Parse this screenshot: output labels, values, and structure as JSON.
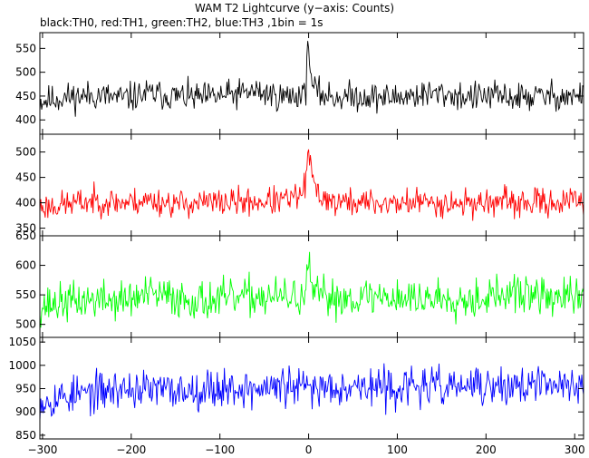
{
  "title": "WAM T2 Lightcurve (y−axis: Counts)",
  "subtitle": "black:TH0, red:TH1, green:TH2, blue:TH3 ,1bin = 1s",
  "chart_data": {
    "type": "line",
    "title": "WAM T2 Lightcurve (y−axis: Counts)",
    "subtitle": "black:TH0, red:TH1, green:TH2, blue:TH3 ,1bin = 1s",
    "xlabel": "",
    "ylabel": "",
    "xlim": [
      -303,
      310
    ],
    "x_ticks": [
      -300,
      -200,
      -100,
      0,
      100,
      200,
      300
    ],
    "x_tick_labels": [
      "−300",
      "−200",
      "−100",
      "0",
      "100",
      "200",
      "300"
    ],
    "grid": false,
    "panels": [
      {
        "name": "TH0",
        "color": "#000000",
        "ylim": [
          370,
          583
        ],
        "y_ticks": [
          400,
          450,
          500,
          550
        ],
        "x": [
          -300,
          -270,
          -240,
          -210,
          -180,
          -150,
          -120,
          -90,
          -60,
          -30,
          -10,
          -3,
          0,
          3,
          10,
          30,
          60,
          90,
          120,
          150,
          180,
          210,
          240,
          270,
          300
        ],
        "values": [
          440,
          448,
          452,
          445,
          455,
          450,
          446,
          452,
          460,
          448,
          452,
          470,
          570,
          480,
          455,
          448,
          450,
          446,
          452,
          455,
          448,
          450,
          447,
          451,
          449
        ],
        "noise": 28,
        "seed": 11
      },
      {
        "name": "TH1",
        "color": "#ff0000",
        "ylim": [
          335,
          535
        ],
        "y_ticks": [
          350,
          400,
          450,
          500
        ],
        "x": [
          -300,
          -270,
          -240,
          -210,
          -180,
          -150,
          -120,
          -90,
          -60,
          -30,
          -10,
          -3,
          0,
          3,
          10,
          30,
          60,
          90,
          120,
          150,
          180,
          210,
          240,
          270,
          300
        ],
        "values": [
          392,
          398,
          404,
          400,
          405,
          398,
          400,
          401,
          402,
          404,
          412,
          440,
          505,
          455,
          418,
          400,
          401,
          398,
          402,
          400,
          399,
          402,
          398,
          401,
          402
        ],
        "noise": 25,
        "seed": 23
      },
      {
        "name": "TH2",
        "color": "#00ff00",
        "ylim": [
          478,
          650
        ],
        "y_ticks": [
          500,
          550,
          600,
          650
        ],
        "x": [
          -300,
          -270,
          -240,
          -210,
          -180,
          -150,
          -120,
          -90,
          -60,
          -30,
          -10,
          -3,
          0,
          3,
          10,
          30,
          60,
          90,
          120,
          150,
          180,
          210,
          240,
          270,
          300
        ],
        "values": [
          532,
          538,
          542,
          540,
          550,
          545,
          540,
          542,
          548,
          545,
          546,
          552,
          600,
          560,
          548,
          545,
          546,
          548,
          542,
          546,
          544,
          548,
          552,
          546,
          545
        ],
        "noise": 30,
        "seed": 37
      },
      {
        "name": "TH3",
        "color": "#0000ff",
        "ylim": [
          842,
          1060
        ],
        "y_ticks": [
          850,
          900,
          950,
          1000,
          1050
        ],
        "x": [
          -300,
          -270,
          -240,
          -210,
          -180,
          -150,
          -120,
          -90,
          -60,
          -30,
          -10,
          -3,
          0,
          3,
          10,
          30,
          60,
          90,
          120,
          150,
          180,
          210,
          240,
          270,
          300
        ],
        "values": [
          925,
          935,
          942,
          950,
          948,
          945,
          950,
          952,
          948,
          955,
          950,
          952,
          955,
          950,
          952,
          958,
          955,
          950,
          955,
          952,
          956,
          950,
          958,
          955,
          960
        ],
        "noise": 38,
        "seed": 53
      }
    ]
  }
}
